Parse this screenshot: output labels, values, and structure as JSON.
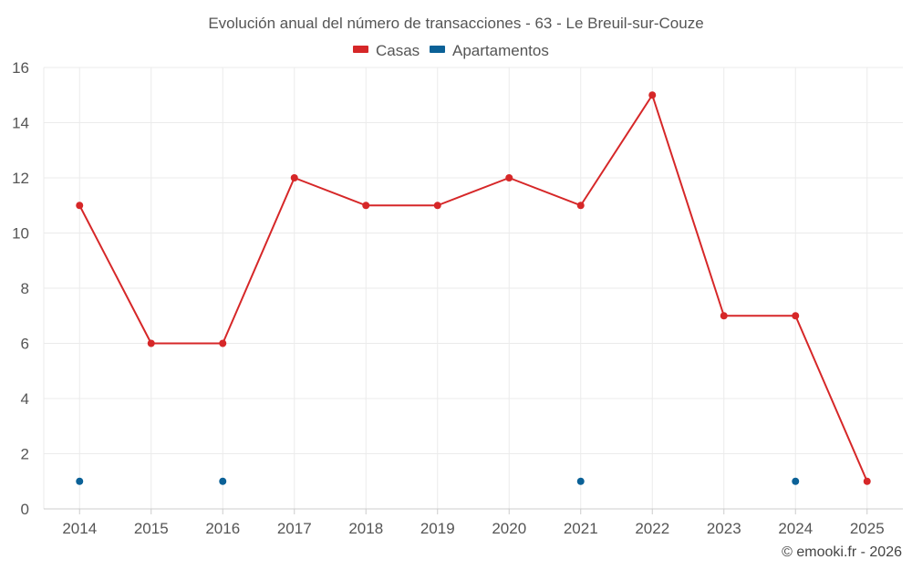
{
  "chart_data": {
    "type": "line",
    "title": "Evolución anual del número de transacciones - 63 - Le Breuil-sur-Couze",
    "categories": [
      "2014",
      "2015",
      "2016",
      "2017",
      "2018",
      "2019",
      "2020",
      "2021",
      "2022",
      "2023",
      "2024",
      "2025"
    ],
    "series": [
      {
        "name": "Casas",
        "color": "#d62728",
        "line": true,
        "values": [
          11,
          6,
          6,
          12,
          11,
          11,
          12,
          11,
          15,
          7,
          7,
          1
        ]
      },
      {
        "name": "Apartamentos",
        "color": "#0b6197",
        "line": false,
        "values": [
          1,
          null,
          1,
          null,
          null,
          null,
          null,
          1,
          null,
          null,
          1,
          null
        ]
      }
    ],
    "ylim": [
      0,
      16
    ],
    "yticks": [
      0,
      2,
      4,
      6,
      8,
      10,
      12,
      14,
      16
    ],
    "grid": true,
    "legend_position": "top-center",
    "xlabel": "",
    "ylabel": ""
  },
  "credit": "© emooki.fr - 2026"
}
